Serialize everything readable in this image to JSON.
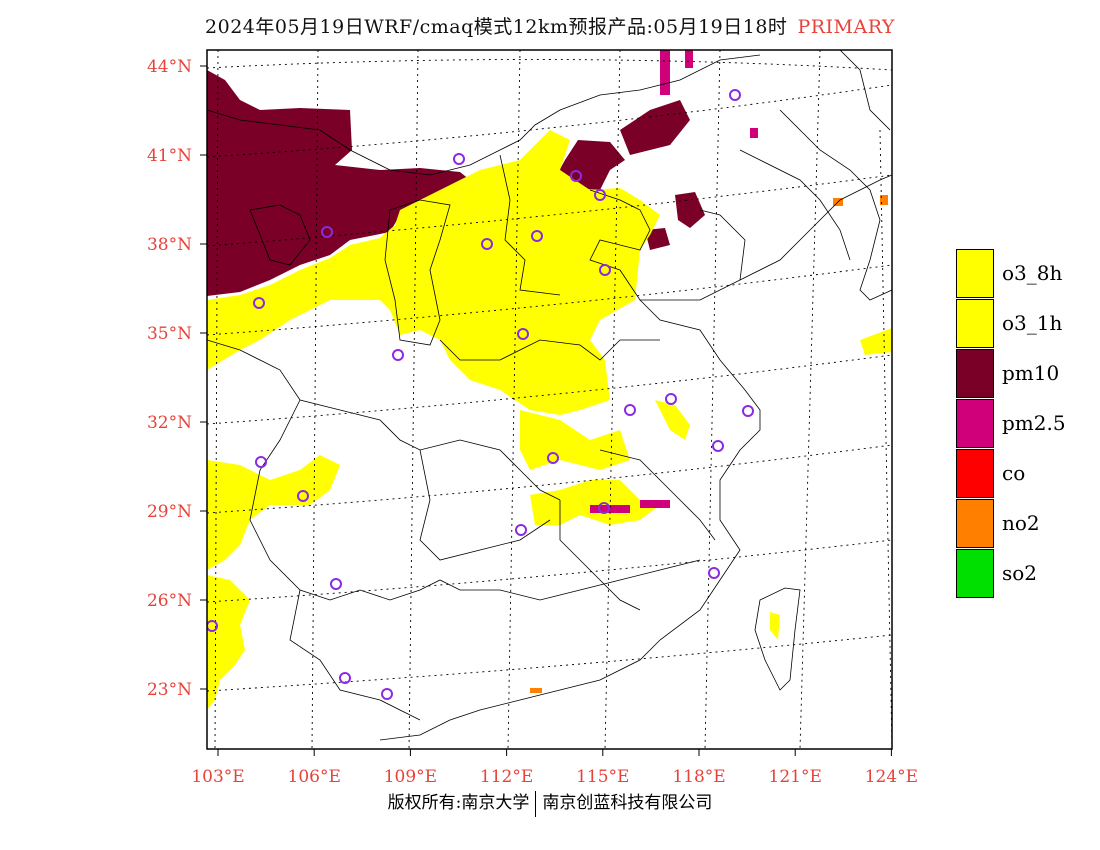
{
  "title": {
    "text": "2024年05月19日WRF/cmaq模式12km预报产品:05月19日18时",
    "tag": "PRIMARY"
  },
  "axes": {
    "lat_labels": [
      "44°N",
      "41°N",
      "38°N",
      "35°N",
      "32°N",
      "29°N",
      "26°N",
      "23°N"
    ],
    "lon_labels": [
      "103°E",
      "106°E",
      "109°E",
      "112°E",
      "115°E",
      "118°E",
      "121°E",
      "124°E"
    ]
  },
  "legend": [
    {
      "label": "o3_8h",
      "color": "#ffff00"
    },
    {
      "label": "o3_1h",
      "color": "#ffff00"
    },
    {
      "label": "pm10",
      "color": "#7a0028"
    },
    {
      "label": "pm2.5",
      "color": "#d0007a"
    },
    {
      "label": "co",
      "color": "#ff0000"
    },
    {
      "label": "no2",
      "color": "#ff8000"
    },
    {
      "label": "so2",
      "color": "#00e000"
    }
  ],
  "footer": {
    "left": "版权所有:南京大学",
    "right": "南京创蓝科技有限公司"
  },
  "colors": {
    "accent": "#e8423b",
    "o3": "#ffff00",
    "pm10": "#7a0028",
    "pm25": "#d0007a",
    "no2": "#ff8000",
    "station": "#8a2be2"
  }
}
